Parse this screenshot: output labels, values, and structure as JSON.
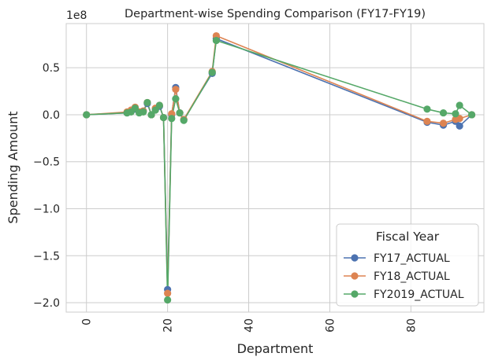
{
  "chart_data": {
    "type": "line",
    "title": "Department-wise Spending Comparison (FY17-FY19)",
    "xlabel": "Department",
    "ylabel": "Spending Amount",
    "exponent_label": "1e8",
    "xlim": [
      -5,
      98
    ],
    "ylim": [
      -2.1,
      0.97
    ],
    "x_ticks": [
      0,
      20,
      40,
      60,
      80
    ],
    "x_tick_labels": [
      "0",
      "20",
      "40",
      "60",
      "80"
    ],
    "y_ticks": [
      0.5,
      0.0,
      -0.5,
      -1.0,
      -1.5,
      -2.0
    ],
    "y_tick_labels": [
      "0.5",
      "0.0",
      "−0.5",
      "−1.0",
      "−1.5",
      "−2.0"
    ],
    "grid": true,
    "legend": {
      "title": "Fiscal Year",
      "position": "lower right"
    },
    "x": [
      0,
      10,
      11,
      12,
      13,
      14,
      15,
      16,
      17,
      18,
      19,
      20,
      21,
      22,
      23,
      24,
      31,
      32,
      84,
      88,
      91,
      92,
      95
    ],
    "series": [
      {
        "name": "FY17_ACTUAL",
        "color": "#4c72b0",
        "values": [
          0.0,
          0.02,
          0.04,
          0.06,
          0.03,
          0.04,
          0.12,
          0.0,
          0.06,
          0.09,
          -0.03,
          -1.86,
          0.0,
          0.29,
          0.02,
          -0.05,
          0.44,
          0.81,
          -0.08,
          -0.11,
          -0.07,
          -0.12,
          0.0
        ]
      },
      {
        "name": "FY18_ACTUAL",
        "color": "#dd8452",
        "values": [
          0.0,
          0.03,
          0.05,
          0.08,
          0.03,
          0.04,
          0.13,
          0.0,
          0.07,
          0.1,
          -0.03,
          -1.9,
          0.01,
          0.27,
          0.02,
          -0.05,
          0.46,
          0.84,
          -0.07,
          -0.09,
          -0.05,
          -0.04,
          0.0
        ]
      },
      {
        "name": "FY2019_ACTUAL",
        "color": "#55a868",
        "values": [
          0.0,
          0.02,
          0.03,
          0.07,
          0.02,
          0.03,
          0.13,
          0.0,
          0.05,
          0.1,
          -0.03,
          -1.97,
          -0.04,
          0.17,
          0.02,
          -0.06,
          0.45,
          0.79,
          0.06,
          0.02,
          0.01,
          0.1,
          0.0
        ]
      }
    ]
  }
}
